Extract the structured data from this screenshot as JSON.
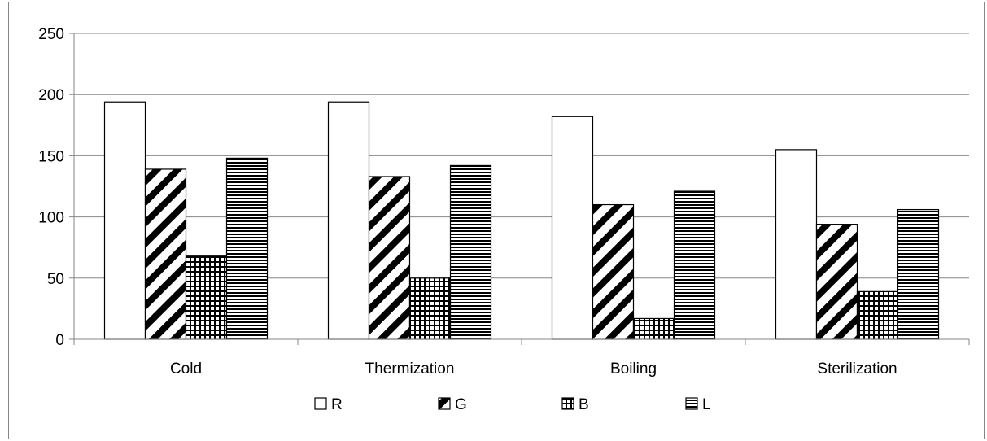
{
  "chart_data": {
    "type": "bar",
    "title": "",
    "xlabel": "",
    "ylabel": "",
    "categories": [
      "Cold",
      "Thermization",
      "Boiling",
      "Sterilization"
    ],
    "series": [
      {
        "name": "R",
        "values": [
          194,
          194,
          182,
          155
        ],
        "pattern": "none"
      },
      {
        "name": "G",
        "values": [
          139,
          133,
          110,
          94
        ],
        "pattern": "diagonal-stripes"
      },
      {
        "name": "B",
        "values": [
          68,
          50,
          17,
          39
        ],
        "pattern": "grid"
      },
      {
        "name": "L",
        "values": [
          148,
          142,
          121,
          106
        ],
        "pattern": "horizontal-stripes"
      }
    ],
    "ylim": [
      0,
      250
    ],
    "yticks": [
      0,
      50,
      100,
      150,
      200,
      250
    ],
    "grid": true,
    "legend_position": "bottom",
    "colors": {
      "bar_fill": "#ffffff",
      "bar_stroke": "#000000",
      "gridline": "#868686",
      "axis": "#868686"
    }
  }
}
